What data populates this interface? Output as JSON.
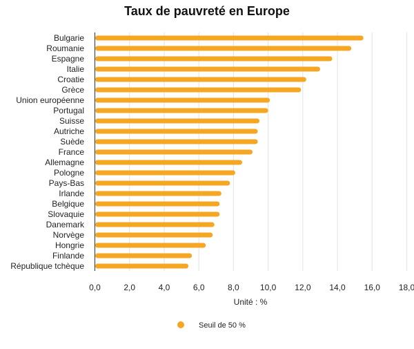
{
  "chart_data": {
    "type": "bar",
    "orientation": "horizontal",
    "title": "Taux de pauvreté en Europe",
    "xlabel": "Unité : %",
    "ylabel": "",
    "xlim": [
      0,
      18
    ],
    "x_ticks": [
      "0,0",
      "2,0",
      "4,0",
      "6,0",
      "8,0",
      "10,0",
      "12,0",
      "14,0",
      "16,0",
      "18,0"
    ],
    "grid": "vertical",
    "legend_position": "bottom",
    "categories": [
      "Bulgarie",
      "Roumanie",
      "Espagne",
      "Italie",
      "Croatie",
      "Grèce",
      "Union européenne",
      "Portugal",
      "Suisse",
      "Autriche",
      "Suède",
      "France",
      "Allemagne",
      "Pologne",
      "Pays-Bas",
      "Irlande",
      "Belgique",
      "Slovaquie",
      "Danemark",
      "Norvège",
      "Hongrie",
      "Finlande",
      "République tchèque"
    ],
    "series": [
      {
        "name": "Seuil de 50 %",
        "color": "#F5A623",
        "values": [
          15.5,
          14.8,
          13.7,
          13.0,
          12.2,
          11.9,
          10.1,
          10.0,
          9.5,
          9.4,
          9.4,
          9.1,
          8.5,
          8.1,
          7.8,
          7.3,
          7.2,
          7.2,
          6.9,
          6.8,
          6.4,
          5.6,
          5.4
        ]
      }
    ]
  }
}
